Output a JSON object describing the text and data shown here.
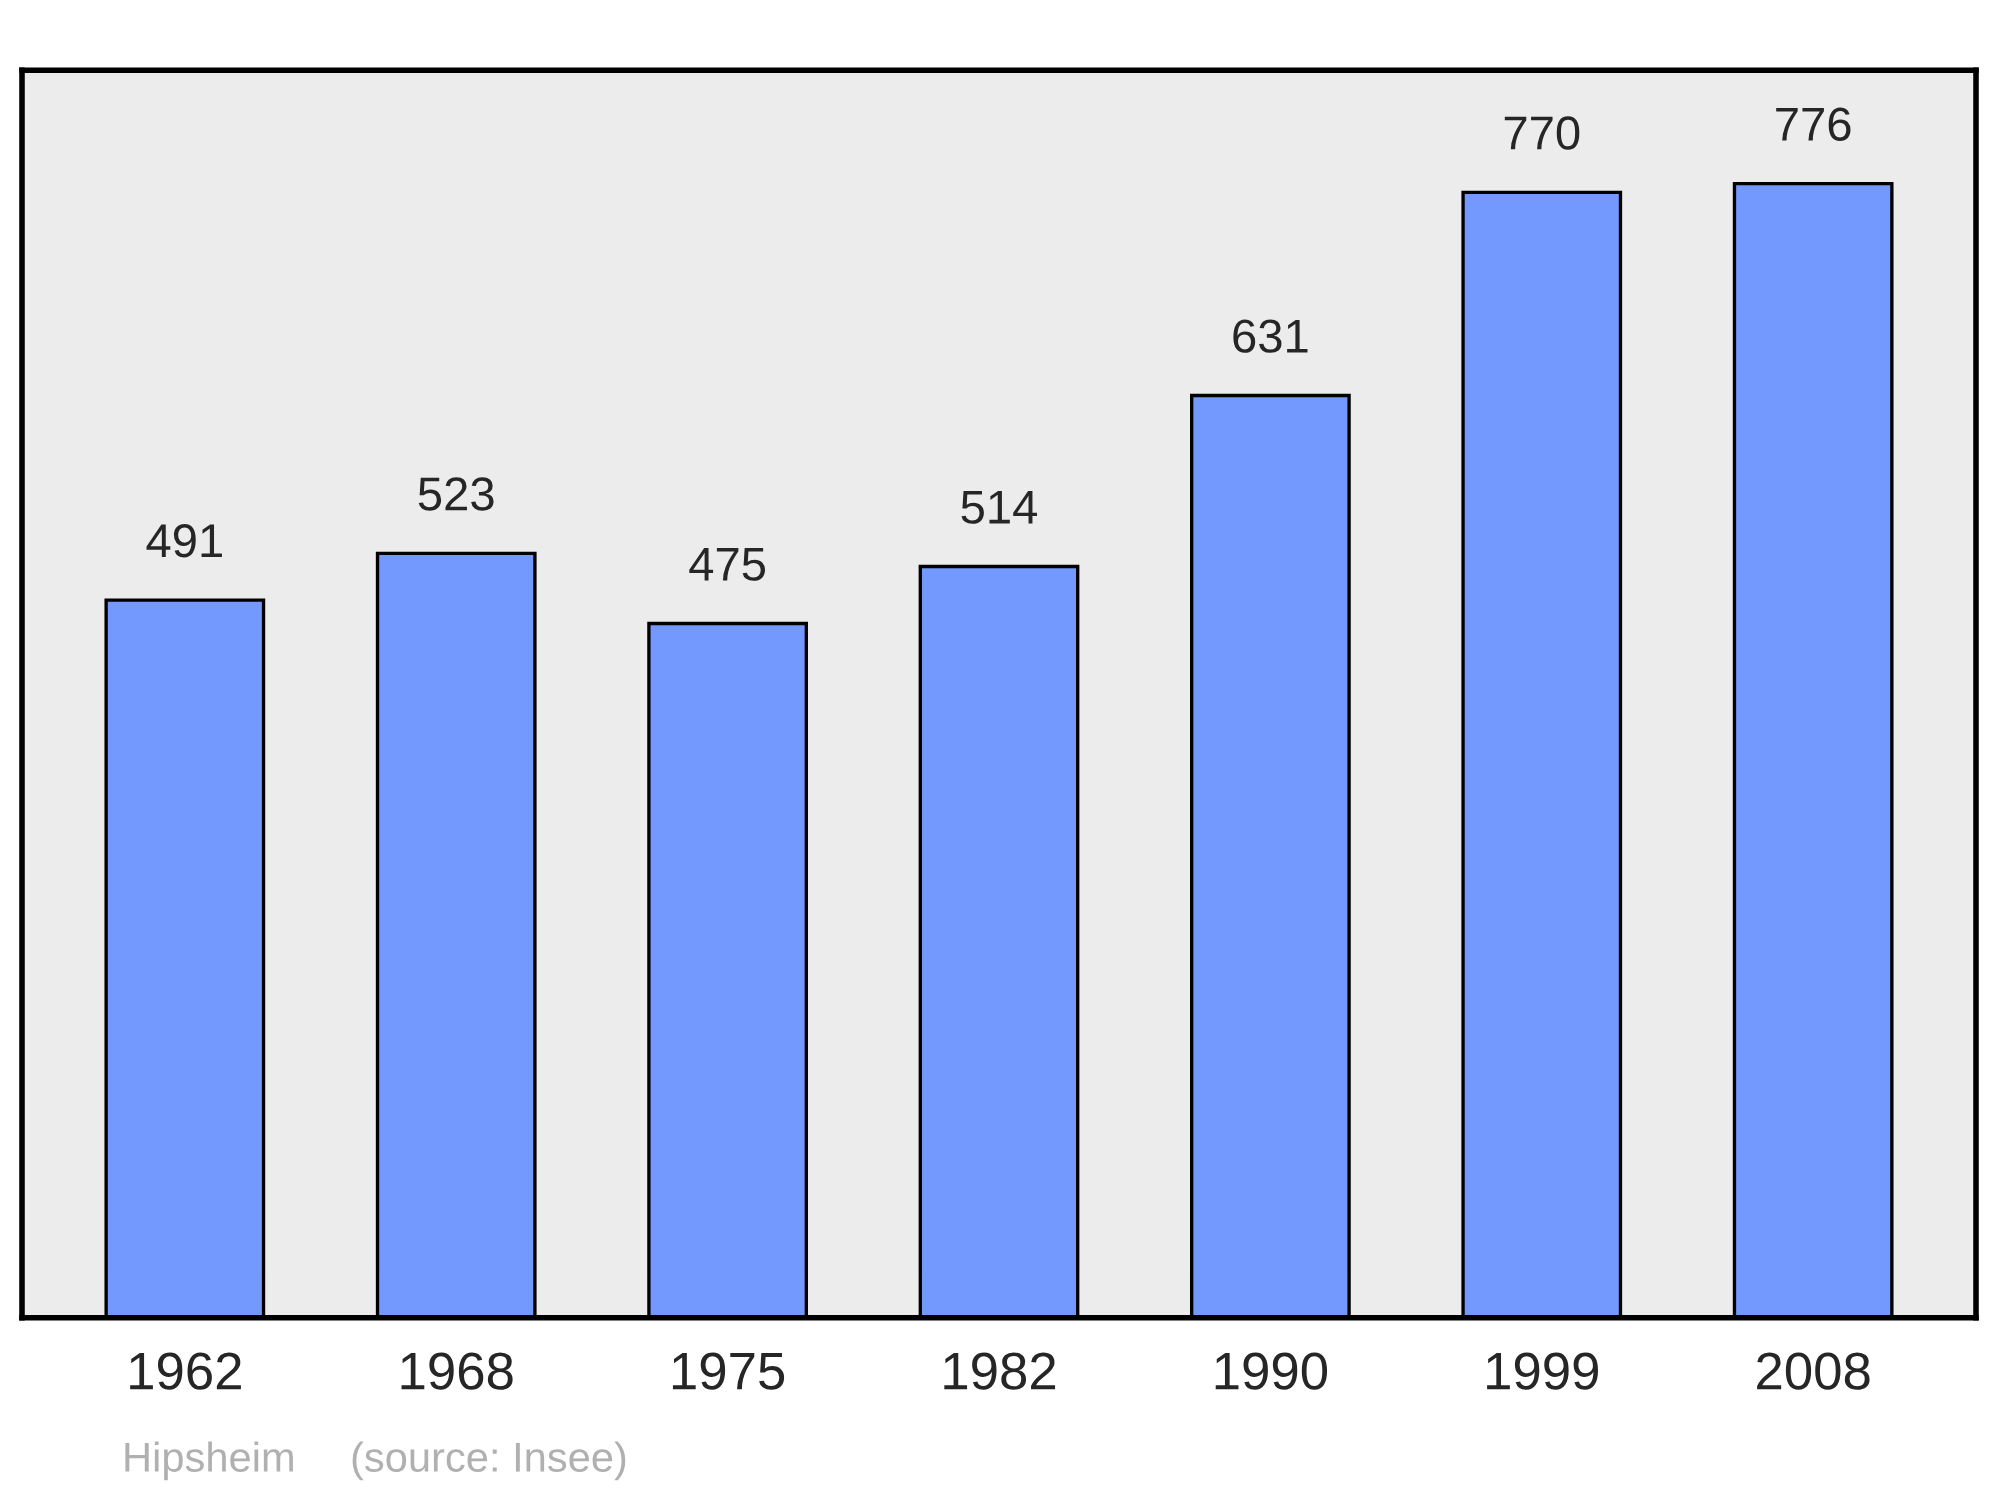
{
  "chart_data": {
    "type": "bar",
    "categories": [
      "1962",
      "1968",
      "1975",
      "1982",
      "1990",
      "1999",
      "2008"
    ],
    "values": [
      491,
      523,
      475,
      514,
      631,
      770,
      776
    ],
    "color": "#7399ff",
    "data_labels": true,
    "grid": false,
    "annotations": [
      "Hipsheim",
      "(source: Insee)"
    ]
  }
}
